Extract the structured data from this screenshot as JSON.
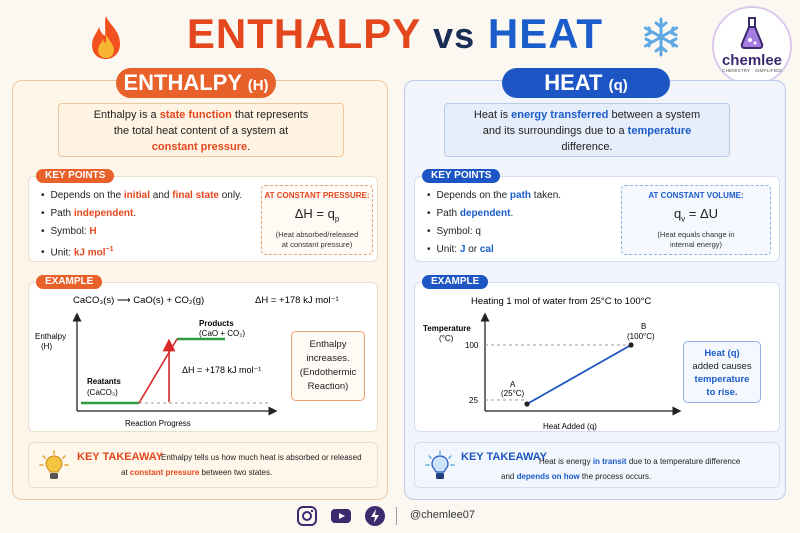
{
  "header": {
    "title_left": "ENTHALPY",
    "title_vs": "vs",
    "title_right": "HEAT",
    "left_icon": "fire-icon",
    "right_icon": "snowflake-icon",
    "logo_name": "chemlee",
    "logo_tagline": "CHEMISTRY · SIMPLIFIED"
  },
  "enthalpy": {
    "pill": "ENTHALPY",
    "pill_symbol": "(H)",
    "def_1": "Enthalpy is a ",
    "def_hl1": "state function",
    "def_2": " that represents",
    "def_3": "the total heat content of a system at",
    "def_hl2": "constant pressure",
    "def_end": ".",
    "key_points_label": "KEY POINTS",
    "kp1_pre": "Depends on the ",
    "kp1_hl1": "initial",
    "kp1_mid": " and ",
    "kp1_hl2": "final state",
    "kp1_post": " only.",
    "kp2_pre": "Path ",
    "kp2_hl": "independent",
    "kp2_post": ".",
    "kp3_pre": "Symbol: ",
    "kp3_hl": "H",
    "kp4_pre": "Unit: ",
    "kp4_hl": "kJ mol",
    "kp4_sup": "−1",
    "callout_title": "AT CONSTANT PRESSURE:",
    "callout_eq": "ΔH = q",
    "callout_sub": "p",
    "callout_note1": "(Heat absorbed/released",
    "callout_note2": "at constant pressure)",
    "example_label": "EXAMPLE",
    "reaction": "CaCO₃(s) ⟶ CaO(s) + CO₂(g)",
    "reaction_dh": "ΔH = +178 kJ mol⁻¹",
    "axis_y1": "Enthalpy",
    "axis_y2": "(H)",
    "axis_x": "Reaction Progress",
    "reactants1": "Reatants",
    "reactants2": "(CaCO₃)",
    "products1": "Products",
    "products2": "(CaO + CO₂)",
    "dh_label": "ΔH = +178 kJ mol⁻¹",
    "side_1": "Enthalpy",
    "side_2": "increases.",
    "side_3": "(Endothermic",
    "side_4": "Reaction)",
    "takeaway_title": "KEY TAKEAWAY",
    "takeaway_1": "Enthalpy tells us how much heat is absorbed or released",
    "takeaway_2_pre": "at ",
    "takeaway_2_hl": "constant pressure",
    "takeaway_2_post": " between two states."
  },
  "heat": {
    "pill": "HEAT",
    "pill_symbol": "(q)",
    "def_1": "Heat is ",
    "def_hl1": "energy transferred",
    "def_2": " between a system",
    "def_3": "and its surroundings due to a ",
    "def_hl2": "temperature",
    "def_4": "difference.",
    "key_points_label": "KEY POINTS",
    "kp1_pre": "Depends on the ",
    "kp1_hl": "path",
    "kp1_post": " taken.",
    "kp2_pre": "Path ",
    "kp2_hl": "dependent",
    "kp2_post": ".",
    "kp3": "Symbol: q",
    "kp4_pre": "Unit: ",
    "kp4_hl1": "J",
    "kp4_mid": " or ",
    "kp4_hl2": "cal",
    "callout_title": "AT CONSTANT VOLUME:",
    "callout_eq_pre": "q",
    "callout_sub": "v",
    "callout_eq_post": " = ΔU",
    "callout_note1": "(Heat equals change in",
    "callout_note2": "internal energy)",
    "example_label": "EXAMPLE",
    "example_text": "Heating 1 mol of water from 25°C to 100°C",
    "axis_y1": "Temperature",
    "axis_y2": "(°C)",
    "axis_x": "Heat Added (q)",
    "tick_100": "100",
    "tick_25": "25",
    "point_a": "A",
    "point_a_val": "(25°C)",
    "point_b": "B",
    "point_b_val": "(100°C)",
    "side_1": "Heat (q)",
    "side_2": "added causes",
    "side_3": "temperature",
    "side_4": "to rise.",
    "takeaway_title": "KEY TAKEAWAY",
    "takeaway_1_pre": "Heat is energy ",
    "takeaway_1_hl": "in transit",
    "takeaway_1_post": " due to a temperature difference",
    "takeaway_2_pre": "and ",
    "takeaway_2_hl": "depends on how",
    "takeaway_2_post": " the process occurs."
  },
  "footer": {
    "handle": "@chemlee07",
    "icons": [
      "instagram-icon",
      "youtube-icon",
      "lightning-icon"
    ]
  },
  "colors": {
    "orange": "#e8612a",
    "blue": "#1d56c4",
    "red_arrow": "#d8282a",
    "green_level": "#2f9b3c"
  }
}
